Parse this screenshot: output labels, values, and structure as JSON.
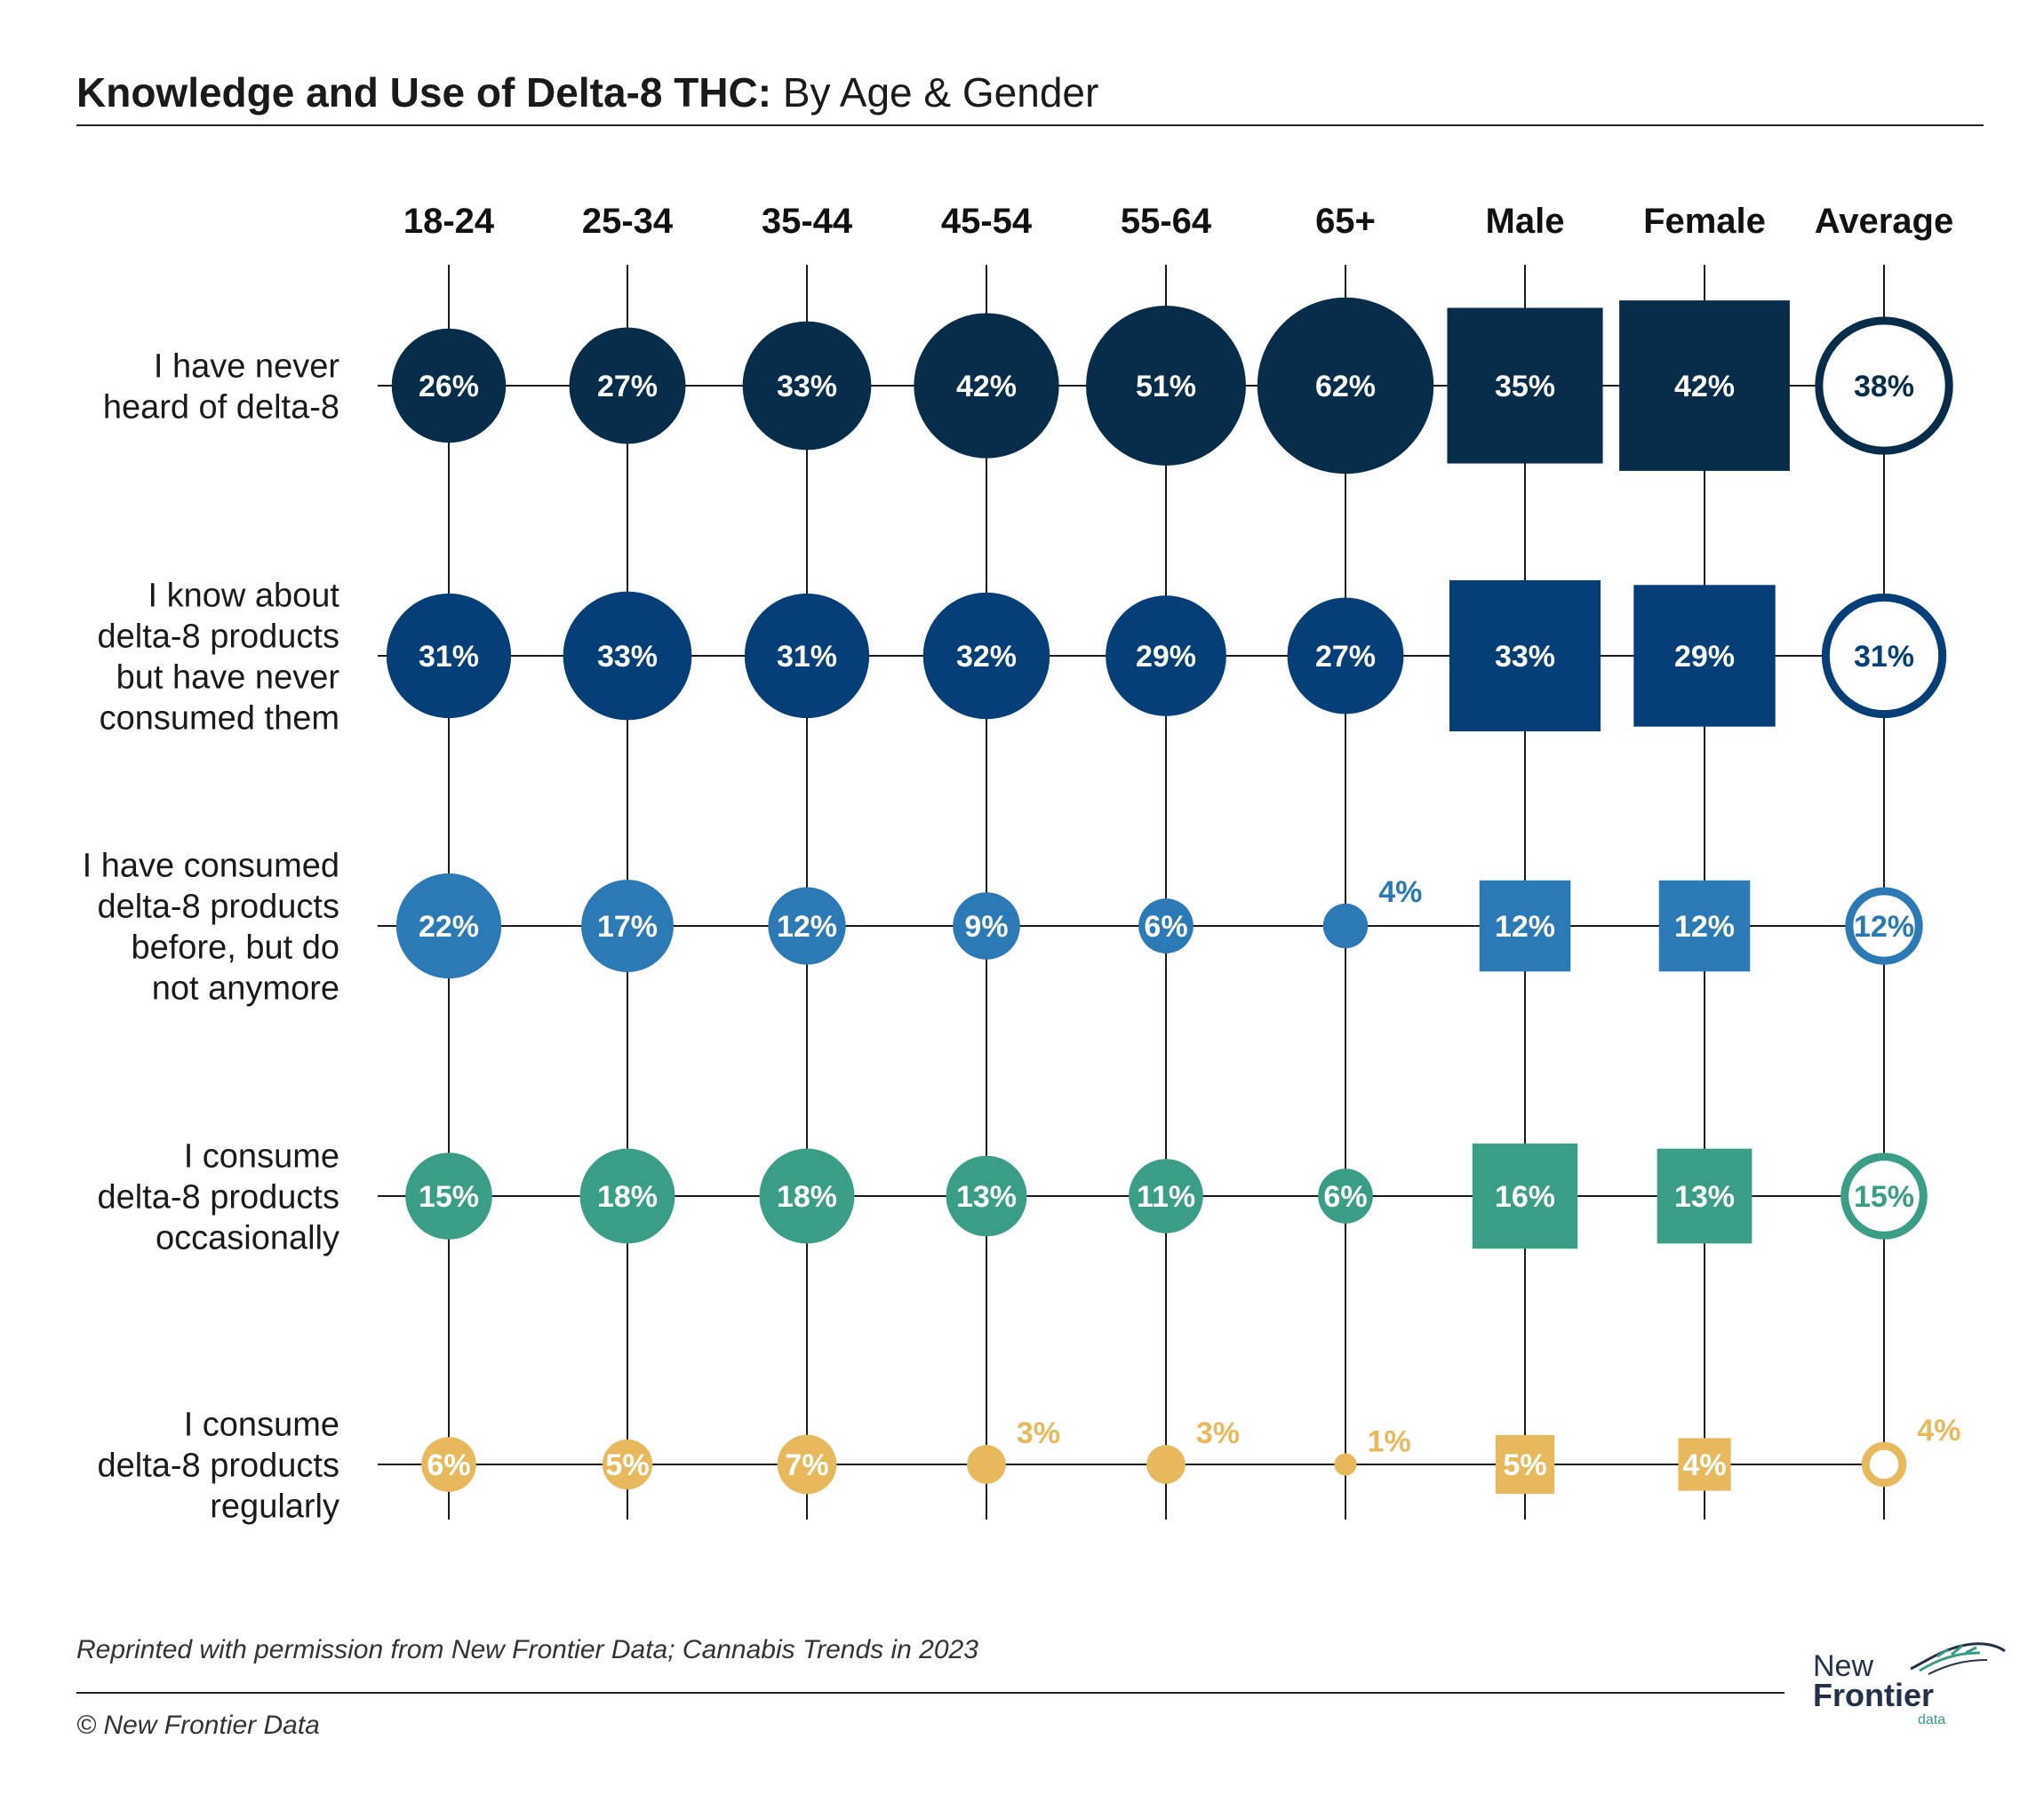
{
  "title": {
    "bold": "Knowledge and Use of Delta-8 THC:",
    "regular": "By Age & Gender"
  },
  "footer": {
    "credit": "Reprinted with permission from New Frontier Data; Cannabis Trends in 2023",
    "copyright": "© New Frontier Data"
  },
  "logo": {
    "line1": "New",
    "line2": "Frontier",
    "line3": "data"
  },
  "colors": {
    "never_heard": "#082d4b",
    "know_not_consumed": "#063f78",
    "consumed_before": "#2b7ab5",
    "occasionally": "#3a9e86",
    "regularly": "#e8b85c",
    "grid": "#1a1a1a"
  },
  "chart_data": {
    "type": "bubble-matrix",
    "columns": [
      "18-24",
      "25-34",
      "35-44",
      "45-54",
      "55-64",
      "65+",
      "Male",
      "Female",
      "Average"
    ],
    "column_groups": {
      "age": [
        "18-24",
        "25-34",
        "35-44",
        "45-54",
        "55-64",
        "65+"
      ],
      "gender": [
        "Male",
        "Female"
      ],
      "average": [
        "Average"
      ]
    },
    "shapes": {
      "age": "circle",
      "gender": "square",
      "average": "ring"
    },
    "unit": "%",
    "rows": [
      {
        "label": [
          "I have never",
          "heard of delta-8"
        ],
        "color_key": "never_heard",
        "values": [
          26,
          27,
          33,
          42,
          51,
          62,
          35,
          42,
          38
        ]
      },
      {
        "label": [
          "I know about",
          "delta-8 products",
          "but have never",
          "consumed them"
        ],
        "color_key": "know_not_consumed",
        "values": [
          31,
          33,
          31,
          32,
          29,
          27,
          33,
          29,
          31
        ]
      },
      {
        "label": [
          "I have consumed",
          "delta-8 products",
          "before, but do",
          "not anymore"
        ],
        "color_key": "consumed_before",
        "values": [
          22,
          17,
          12,
          9,
          6,
          4,
          12,
          12,
          12
        ]
      },
      {
        "label": [
          "I consume",
          "delta-8 products",
          "occasionally"
        ],
        "color_key": "occasionally",
        "values": [
          15,
          18,
          18,
          13,
          11,
          6,
          16,
          13,
          15
        ]
      },
      {
        "label": [
          "I consume",
          "delta-8 products",
          "regularly"
        ],
        "color_key": "regularly",
        "values": [
          6,
          5,
          7,
          3,
          3,
          1,
          5,
          4,
          4
        ]
      }
    ]
  }
}
